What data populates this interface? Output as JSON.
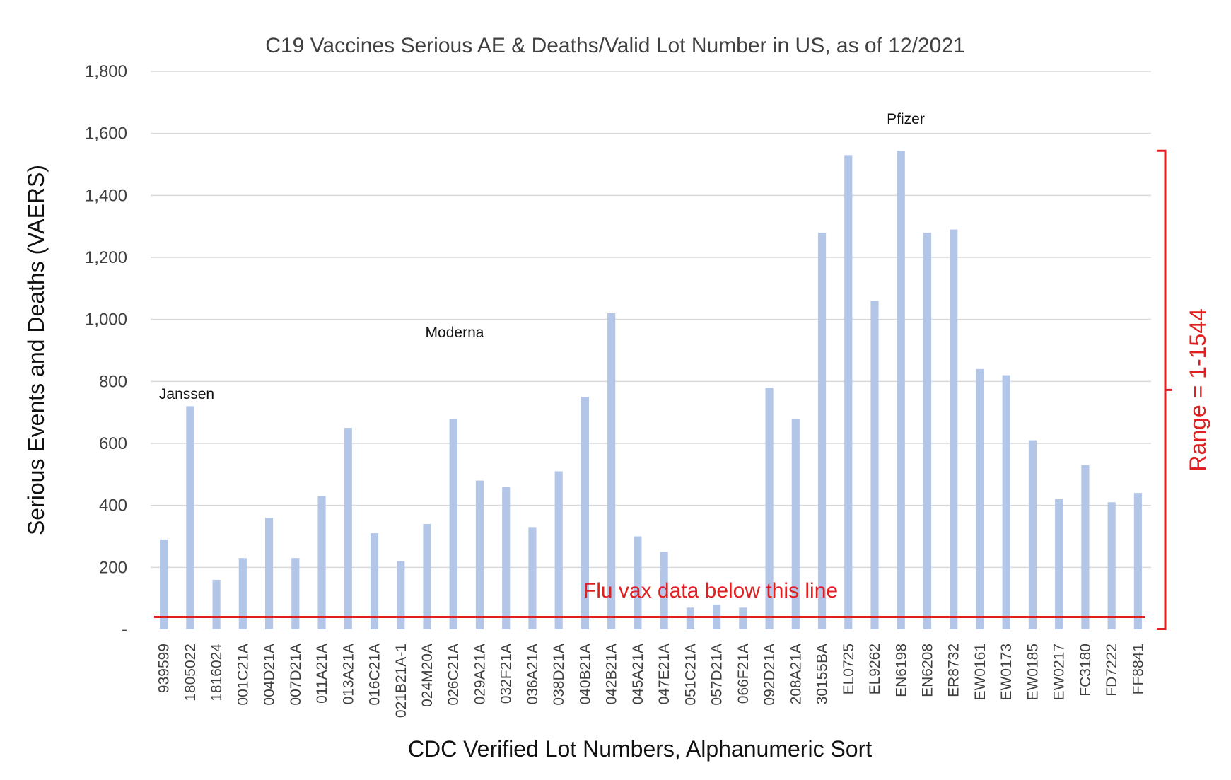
{
  "chart_data": {
    "type": "bar",
    "title": "C19 Vaccines Serious AE & Deaths/Valid Lot Number in US, as of 12/2021",
    "xlabel": "CDC Verified Lot Numbers, Alphanumeric Sort",
    "ylabel": "Serious Events and Deaths (VAERS)",
    "ylim": [
      0,
      1800
    ],
    "yticks": [
      {
        "value": 0,
        "label": "-"
      },
      {
        "value": 200,
        "label": "200"
      },
      {
        "value": 400,
        "label": "400"
      },
      {
        "value": 600,
        "label": "600"
      },
      {
        "value": 800,
        "label": "800"
      },
      {
        "value": 1000,
        "label": "1,000"
      },
      {
        "value": 1200,
        "label": "1,200"
      },
      {
        "value": 1400,
        "label": "1,400"
      },
      {
        "value": 1600,
        "label": "1,600"
      },
      {
        "value": 1800,
        "label": "1,800"
      }
    ],
    "grid": true,
    "categories": [
      "939599",
      "1805022",
      "1816024",
      "001C21A",
      "004D21A",
      "007D21A",
      "011A21A",
      "013A21A",
      "016C21A",
      "021B21A-1",
      "024M20A",
      "026C21A",
      "029A21A",
      "032F21A",
      "036A21A",
      "038D21A",
      "040B21A",
      "042B21A",
      "045A21A",
      "047E21A",
      "051C21A",
      "057D21A",
      "066F21A",
      "092D21A",
      "208A21A",
      "30155BA",
      "EL0725",
      "EL9262",
      "EN6198",
      "EN6208",
      "ER8732",
      "EW0161",
      "EW0173",
      "EW0185",
      "EW0217",
      "FC3180",
      "FD7222",
      "FF8841"
    ],
    "values": [
      290,
      720,
      160,
      230,
      360,
      230,
      430,
      650,
      310,
      220,
      340,
      680,
      480,
      460,
      330,
      510,
      750,
      1020,
      300,
      250,
      70,
      80,
      70,
      780,
      680,
      1280,
      1530,
      1060,
      1544,
      1280,
      1290,
      840,
      820,
      610,
      420,
      530,
      410,
      440
    ],
    "group_labels": [
      "Janssen",
      "Moderna",
      "Pfizer"
    ],
    "flu_line": {
      "value": 40,
      "label": "Flu vax data below this line"
    },
    "range_annotation": {
      "label": "Range = 1-1544",
      "from": 1,
      "to": 1544
    },
    "colors": {
      "bars": "#b4c6e7",
      "annotation": "#e02020",
      "grid": "#d9d9d9"
    }
  }
}
